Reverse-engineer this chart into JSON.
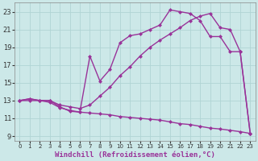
{
  "xlabel": "Windchill (Refroidissement éolien,°C)",
  "background_color": "#cce8e8",
  "grid_color": "#b0d4d4",
  "line_color": "#993399",
  "xlim": [
    -0.5,
    23.5
  ],
  "ylim": [
    8.5,
    24.0
  ],
  "xticks": [
    0,
    1,
    2,
    3,
    4,
    5,
    6,
    7,
    8,
    9,
    10,
    11,
    12,
    13,
    14,
    15,
    16,
    17,
    18,
    19,
    20,
    21,
    22,
    23
  ],
  "yticks": [
    9,
    11,
    13,
    15,
    17,
    19,
    21,
    23
  ],
  "curve1_x": [
    0,
    1,
    2,
    3,
    4,
    5,
    6,
    7,
    8,
    9,
    10,
    11,
    12,
    13,
    14,
    15,
    16,
    17,
    18,
    19,
    20,
    21,
    22,
    23
  ],
  "curve1_y": [
    13.0,
    13.2,
    13.0,
    13.0,
    12.3,
    11.8,
    11.7,
    18.0,
    15.2,
    16.5,
    19.5,
    20.3,
    20.5,
    21.0,
    21.5,
    23.2,
    23.0,
    22.8,
    22.0,
    20.2,
    20.2,
    18.5,
    18.5,
    9.3
  ],
  "curve2_x": [
    0,
    1,
    2,
    3,
    4,
    5,
    6,
    7,
    8,
    9,
    10,
    11,
    12,
    13,
    14,
    15,
    16,
    17,
    18,
    19,
    20,
    21,
    22,
    23
  ],
  "curve2_y": [
    13.0,
    13.2,
    13.0,
    13.0,
    12.5,
    12.3,
    12.1,
    12.5,
    13.5,
    14.5,
    15.8,
    16.8,
    18.0,
    19.0,
    19.8,
    20.5,
    21.2,
    22.0,
    22.5,
    22.8,
    21.2,
    21.0,
    18.5,
    9.3
  ],
  "curve3_x": [
    0,
    1,
    2,
    3,
    4,
    5,
    6,
    7,
    8,
    9,
    10,
    11,
    12,
    13,
    14,
    15,
    16,
    17,
    18,
    19,
    20,
    21,
    22,
    23
  ],
  "curve3_y": [
    13.0,
    13.0,
    13.0,
    12.8,
    12.2,
    11.9,
    11.7,
    11.6,
    11.5,
    11.4,
    11.2,
    11.1,
    11.0,
    10.9,
    10.8,
    10.6,
    10.4,
    10.3,
    10.1,
    9.9,
    9.8,
    9.65,
    9.5,
    9.3
  ],
  "marker": "D",
  "markersize": 2.5,
  "linewidth": 1.0,
  "tick_fontsize": 5.5,
  "label_fontsize": 6.5
}
